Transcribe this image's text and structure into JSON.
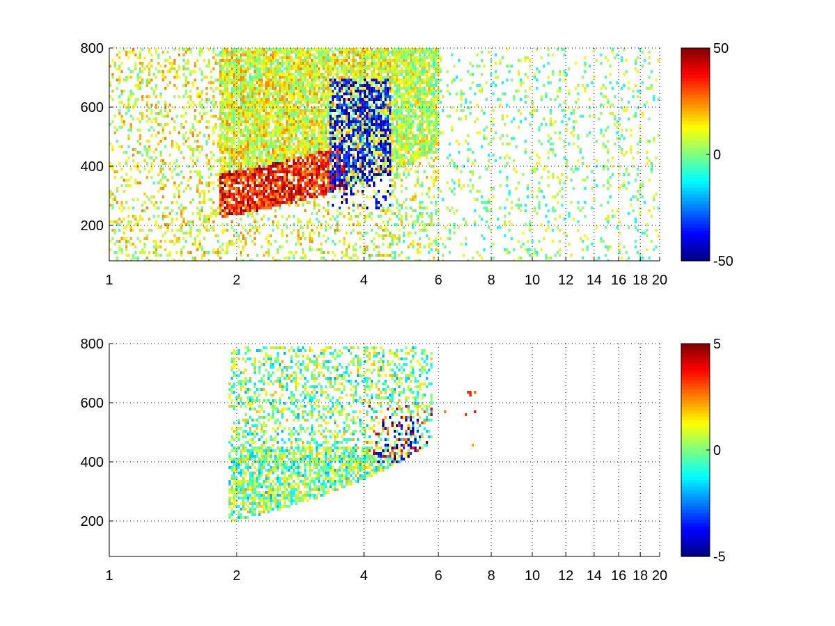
{
  "chart_data": [
    {
      "type": "heatmap",
      "title": "",
      "xlabel": "",
      "ylabel": "",
      "xlim": [
        1,
        20
      ],
      "ylim": [
        80,
        800
      ],
      "x_scale": "log",
      "x_ticks": [
        1,
        2,
        4,
        6,
        8,
        10,
        12,
        14,
        16,
        18,
        20
      ],
      "y_ticks": [
        200,
        400,
        600,
        800
      ],
      "grid": true,
      "colormap": "jet",
      "colorbar": {
        "range": [
          -50,
          50
        ],
        "ticks": [
          50,
          0,
          -50
        ]
      },
      "regions": [
        {
          "name": "dense positive band",
          "x_range": [
            1.8,
            3.6
          ],
          "y_range": [
            230,
            420
          ],
          "value": 30
        },
        {
          "name": "strong negative streak",
          "x_range": [
            3.3,
            4.6
          ],
          "y_range": [
            260,
            700
          ],
          "value": -40
        },
        {
          "name": "sparse scatter",
          "x_range": [
            6,
            20
          ],
          "y_range": [
            80,
            800
          ],
          "value": 5
        }
      ]
    },
    {
      "type": "heatmap",
      "title": "",
      "xlabel": "",
      "ylabel": "",
      "xlim": [
        1,
        20
      ],
      "ylim": [
        80,
        800
      ],
      "x_scale": "log",
      "x_ticks": [
        1,
        2,
        4,
        6,
        8,
        10,
        12,
        14,
        16,
        18,
        20
      ],
      "y_ticks": [
        200,
        400,
        600,
        800
      ],
      "grid": true,
      "colormap": "jet",
      "colorbar": {
        "range": [
          -5,
          5
        ],
        "ticks": [
          5,
          0,
          -5
        ]
      },
      "regions": [
        {
          "name": "main cluster",
          "x_range": [
            1.9,
            4.6
          ],
          "y_range": [
            200,
            800
          ],
          "value": 1
        },
        {
          "name": "negative patch",
          "x_range": [
            4.2,
            5.4
          ],
          "y_range": [
            400,
            560
          ],
          "value": -4
        },
        {
          "name": "positive patch",
          "x_range": [
            4.0,
            5.8
          ],
          "y_range": [
            420,
            600
          ],
          "value": 3
        }
      ]
    }
  ]
}
